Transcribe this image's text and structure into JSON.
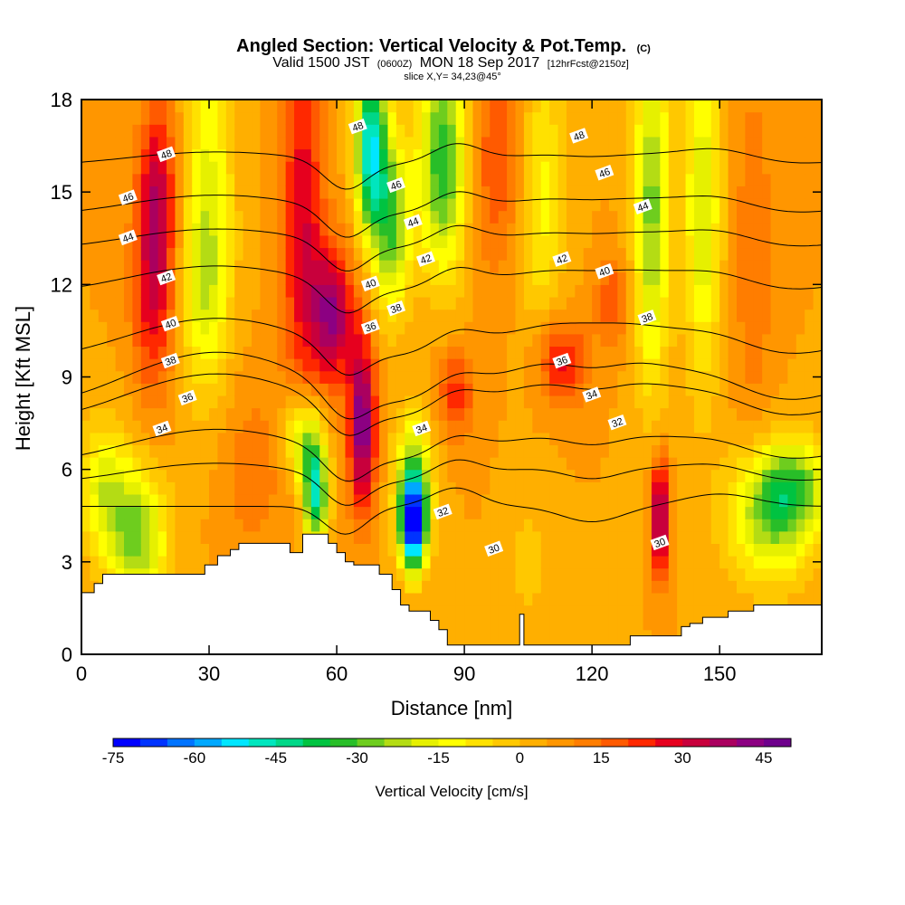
{
  "header": {
    "title": "Angled Section: Vertical Velocity & Pot.Temp.",
    "title_suffix": "(C)",
    "valid_prefix": "Valid 1500 JST",
    "valid_utc": "(0600Z)",
    "valid_date": "MON 18 Sep 2017",
    "forecast": "[12hrFcst@2150z]",
    "slice": "slice X,Y= 34,23@45°"
  },
  "chart_data": {
    "type": "heatmap",
    "xlabel": "Distance [nm]",
    "ylabel": "Height [Kft MSL]",
    "xlim": [
      0,
      174
    ],
    "ylim": [
      0,
      18
    ],
    "x_ticks": [
      0,
      30,
      60,
      90,
      120,
      150
    ],
    "y_ticks": [
      0,
      3,
      6,
      9,
      12,
      15,
      18
    ],
    "x_tick_labels": [
      "0",
      "30",
      "60",
      "90",
      "120",
      "150"
    ],
    "y_tick_labels": [
      "0",
      "3",
      "6",
      "9",
      "12",
      "15",
      "18"
    ],
    "colorbar": {
      "title": "Vertical Velocity [cm/s]",
      "min": -75,
      "max": 50,
      "step": 5,
      "tick_values": [
        -75,
        -60,
        -45,
        -30,
        -15,
        0,
        15,
        30,
        45
      ],
      "tick_labels": [
        "-75",
        "-60",
        "-45",
        "-30",
        "-15",
        "0",
        "15",
        "30",
        "45"
      ],
      "colors": [
        "#0000ff",
        "#0033ff",
        "#0073ff",
        "#00a8ff",
        "#00e6ff",
        "#00e6be",
        "#00d787",
        "#00c341",
        "#28be28",
        "#6ecd1e",
        "#b4dc14",
        "#e6f000",
        "#ffff00",
        "#ffe100",
        "#ffc800",
        "#ffaf00",
        "#ff9600",
        "#ff7d00",
        "#ff5a00",
        "#ff2800",
        "#e6001e",
        "#c8003c",
        "#aa005f",
        "#8c0082",
        "#6e008c"
      ]
    },
    "terrain_outline": [
      [
        0,
        2
      ],
      [
        3,
        2
      ],
      [
        3,
        2.3
      ],
      [
        5,
        2.3
      ],
      [
        5,
        2.6
      ],
      [
        29,
        2.6
      ],
      [
        29,
        2.9
      ],
      [
        32,
        2.9
      ],
      [
        32,
        3.2
      ],
      [
        35,
        3.2
      ],
      [
        35,
        3.4
      ],
      [
        37,
        3.4
      ],
      [
        37,
        3.6
      ],
      [
        49,
        3.6
      ],
      [
        49,
        3.3
      ],
      [
        52,
        3.3
      ],
      [
        52,
        3.9
      ],
      [
        58,
        3.9
      ],
      [
        58,
        3.6
      ],
      [
        60,
        3.6
      ],
      [
        60,
        3.3
      ],
      [
        62,
        3.3
      ],
      [
        62,
        3
      ],
      [
        64,
        3
      ],
      [
        64,
        2.9
      ],
      [
        70,
        2.9
      ],
      [
        70,
        2.6
      ],
      [
        73,
        2.6
      ],
      [
        73,
        2.1
      ],
      [
        75,
        2.1
      ],
      [
        75,
        1.6
      ],
      [
        77,
        1.6
      ],
      [
        77,
        1.4
      ],
      [
        82,
        1.4
      ],
      [
        82,
        1.1
      ],
      [
        84,
        1.1
      ],
      [
        84,
        0.8
      ],
      [
        86,
        0.8
      ],
      [
        86,
        0.3
      ],
      [
        103,
        0.3
      ],
      [
        103,
        1.3
      ],
      [
        104,
        1.3
      ],
      [
        104,
        0.3
      ],
      [
        129,
        0.3
      ],
      [
        129,
        0.6
      ],
      [
        141,
        0.6
      ],
      [
        141,
        0.9
      ],
      [
        143,
        0.9
      ],
      [
        143,
        1
      ],
      [
        146,
        1
      ],
      [
        146,
        1.2
      ],
      [
        152,
        1.2
      ],
      [
        152,
        1.4
      ],
      [
        158,
        1.4
      ],
      [
        158,
        1.6
      ],
      [
        174,
        1.6
      ]
    ],
    "vv_features": [
      {
        "x": 17,
        "y": 12.0,
        "value": 25,
        "sx": 3.5,
        "sy": 2.5
      },
      {
        "x": 18,
        "y": 15.5,
        "value": 20,
        "sx": 3,
        "sy": 2
      },
      {
        "x": 13,
        "y": 3.8,
        "value": -32,
        "sx": 5,
        "sy": 1.6
      },
      {
        "x": 5,
        "y": 5.5,
        "value": -20,
        "sx": 4,
        "sy": 1.5
      },
      {
        "x": 30,
        "y": 14.5,
        "value": -22,
        "sx": 4,
        "sy": 4
      },
      {
        "x": 28,
        "y": 11.5,
        "value": -10,
        "sx": 4,
        "sy": 2
      },
      {
        "x": 52,
        "y": 14.0,
        "value": 25,
        "sx": 3.5,
        "sy": 4
      },
      {
        "x": 59,
        "y": 11.0,
        "value": 35,
        "sx": 3.5,
        "sy": 1.5
      },
      {
        "x": 66,
        "y": 7.5,
        "value": 40,
        "sx": 2.3,
        "sy": 2
      },
      {
        "x": 55,
        "y": 5.2,
        "value": -50,
        "sx": 2,
        "sy": 1.2
      },
      {
        "x": 52,
        "y": 7.0,
        "value": -30,
        "sx": 3,
        "sy": 1
      },
      {
        "x": 68,
        "y": 16.5,
        "value": -55,
        "sx": 2.5,
        "sy": 2
      },
      {
        "x": 73,
        "y": 14.0,
        "value": -35,
        "sx": 3,
        "sy": 2
      },
      {
        "x": 78,
        "y": 4.2,
        "value": -68,
        "sx": 2,
        "sy": 1
      },
      {
        "x": 78,
        "y": 5.5,
        "value": -35,
        "sx": 3,
        "sy": 1.5
      },
      {
        "x": 85,
        "y": 16.0,
        "value": -40,
        "sx": 4,
        "sy": 2.5
      },
      {
        "x": 88,
        "y": 8.5,
        "value": 18,
        "sx": 3,
        "sy": 1
      },
      {
        "x": 98,
        "y": 16.0,
        "value": 15,
        "sx": 5,
        "sy": 2.5
      },
      {
        "x": 108,
        "y": 15.0,
        "value": -18,
        "sx": 4,
        "sy": 3
      },
      {
        "x": 113,
        "y": 9.5,
        "value": 22,
        "sx": 4,
        "sy": 1
      },
      {
        "x": 125,
        "y": 11.5,
        "value": 14,
        "sx": 3,
        "sy": 1
      },
      {
        "x": 134,
        "y": 14.5,
        "value": -32,
        "sx": 3,
        "sy": 4
      },
      {
        "x": 146,
        "y": 14.5,
        "value": -25,
        "sx": 3,
        "sy": 4
      },
      {
        "x": 136,
        "y": 4.5,
        "value": 38,
        "sx": 1.5,
        "sy": 1.3
      },
      {
        "x": 162,
        "y": 4.5,
        "value": -30,
        "sx": 7,
        "sy": 1.5
      },
      {
        "x": 168,
        "y": 5.5,
        "value": -25,
        "sx": 6,
        "sy": 1
      },
      {
        "x": 158,
        "y": 13.0,
        "value": 10,
        "sx": 3,
        "sy": 4
      },
      {
        "x": 105,
        "y": 3.0,
        "value": -8,
        "sx": 3,
        "sy": 1.5
      },
      {
        "x": 40,
        "y": 6.0,
        "value": 8,
        "sx": 6,
        "sy": 2
      }
    ],
    "theta_levels": [
      {
        "value": 30,
        "y_left": 4.8,
        "bump": 0.0
      },
      {
        "value": 32,
        "y_left": 5.9,
        "bump": 0.3
      },
      {
        "value": 34,
        "y_left": 6.8,
        "bump": 0.5
      },
      {
        "value": 36,
        "y_left": 8.4,
        "bump": 0.7
      },
      {
        "value": 38,
        "y_left": 9.0,
        "bump": 0.8
      },
      {
        "value": 40,
        "y_left": 10.3,
        "bump": 0.6
      },
      {
        "value": 42,
        "y_left": 12.2,
        "bump": 0.4
      },
      {
        "value": 44,
        "y_left": 13.5,
        "bump": 0.3
      },
      {
        "value": 46,
        "y_left": 14.6,
        "bump": 0.3
      },
      {
        "value": 48,
        "y_left": 16.1,
        "bump": 0.2
      }
    ],
    "contour_labels": [
      {
        "text": "48",
        "x": 20,
        "y": 16.2
      },
      {
        "text": "46",
        "x": 11,
        "y": 14.8
      },
      {
        "text": "44",
        "x": 11,
        "y": 13.5
      },
      {
        "text": "42",
        "x": 20,
        "y": 12.2
      },
      {
        "text": "40",
        "x": 21,
        "y": 10.7
      },
      {
        "text": "38",
        "x": 21,
        "y": 9.5
      },
      {
        "text": "36",
        "x": 25,
        "y": 8.3
      },
      {
        "text": "34",
        "x": 19,
        "y": 7.3
      },
      {
        "text": "48",
        "x": 65,
        "y": 17.1
      },
      {
        "text": "46",
        "x": 74,
        "y": 15.2
      },
      {
        "text": "44",
        "x": 78,
        "y": 14.0
      },
      {
        "text": "42",
        "x": 81,
        "y": 12.8
      },
      {
        "text": "40",
        "x": 68,
        "y": 12.0
      },
      {
        "text": "38",
        "x": 74,
        "y": 11.2
      },
      {
        "text": "36",
        "x": 68,
        "y": 10.6
      },
      {
        "text": "34",
        "x": 80,
        "y": 7.3
      },
      {
        "text": "32",
        "x": 85,
        "y": 4.6
      },
      {
        "text": "30",
        "x": 97,
        "y": 3.4
      },
      {
        "text": "48",
        "x": 117,
        "y": 16.8
      },
      {
        "text": "46",
        "x": 123,
        "y": 15.6
      },
      {
        "text": "44",
        "x": 132,
        "y": 14.5
      },
      {
        "text": "42",
        "x": 113,
        "y": 12.8
      },
      {
        "text": "40",
        "x": 123,
        "y": 12.4
      },
      {
        "text": "38",
        "x": 133,
        "y": 10.9
      },
      {
        "text": "36",
        "x": 113,
        "y": 9.5
      },
      {
        "text": "34",
        "x": 120,
        "y": 8.4
      },
      {
        "text": "32",
        "x": 126,
        "y": 7.5
      },
      {
        "text": "30",
        "x": 136,
        "y": 3.6
      }
    ]
  }
}
